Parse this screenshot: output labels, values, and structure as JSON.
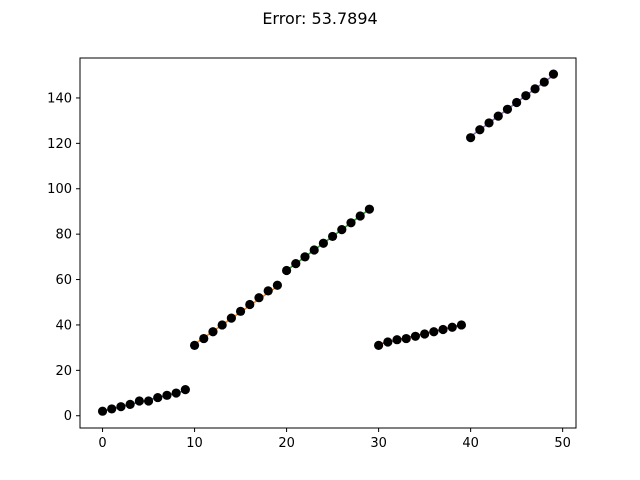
{
  "chart_data": {
    "type": "scatter",
    "title": "Error: 53.7894",
    "xlabel": "",
    "ylabel": "",
    "xlim": [
      -2.45,
      51.45
    ],
    "ylim": [
      -5.4,
      157.6
    ],
    "xticks": [
      0,
      10,
      20,
      30,
      40,
      50
    ],
    "yticks": [
      0,
      20,
      40,
      60,
      80,
      100,
      120,
      140
    ],
    "grid": false,
    "points": {
      "color": "#000000",
      "x": [
        0,
        1,
        2,
        3,
        4,
        5,
        6,
        7,
        8,
        9,
        10,
        11,
        12,
        13,
        14,
        15,
        16,
        17,
        18,
        19,
        20,
        21,
        22,
        23,
        24,
        25,
        26,
        27,
        28,
        29,
        30,
        31,
        32,
        33,
        34,
        35,
        36,
        37,
        38,
        39,
        40,
        41,
        42,
        43,
        44,
        45,
        46,
        47,
        48,
        49
      ],
      "y": [
        2,
        3,
        4,
        5,
        6.5,
        6.5,
        8,
        9,
        10,
        11.5,
        31,
        34,
        37,
        40,
        43,
        46,
        49,
        52,
        55,
        57.5,
        64,
        67,
        70,
        73,
        76,
        79,
        82,
        85,
        88,
        91,
        31,
        32.5,
        33.5,
        34,
        35,
        36,
        37,
        38,
        39,
        40,
        122.5,
        126,
        129,
        132,
        135,
        138,
        141,
        144,
        147,
        150.5
      ]
    },
    "series": [
      {
        "color": "#1f77b4",
        "x": [
          0,
          9
        ],
        "y": [
          2,
          11
        ]
      },
      {
        "color": "#ff7f0e",
        "x": [
          10,
          19
        ],
        "y": [
          31.5,
          57
        ]
      },
      {
        "color": "#2ca02c",
        "x": [
          20,
          29
        ],
        "y": [
          64,
          91
        ]
      },
      {
        "color": "#d62728",
        "x": [
          30,
          39
        ],
        "y": [
          31.5,
          40
        ]
      },
      {
        "color": "#9467bd",
        "x": [
          40,
          49
        ],
        "y": [
          123,
          150
        ]
      }
    ]
  }
}
